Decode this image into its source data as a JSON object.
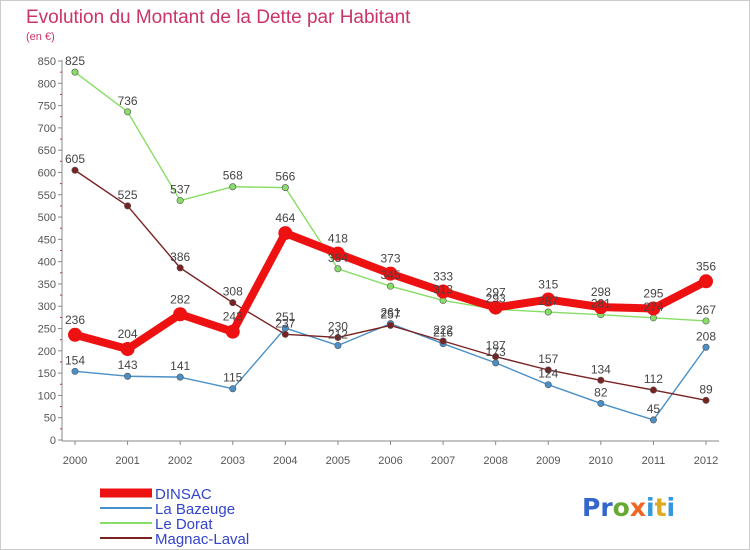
{
  "chart_data": {
    "type": "line",
    "title": "Evolution du Montant de la Dette par Habitant",
    "subtitle": "(en €)",
    "x": [
      "2000",
      "2001",
      "2002",
      "2003",
      "2004",
      "2005",
      "2006",
      "2007",
      "2008",
      "2009",
      "2010",
      "2011",
      "2012"
    ],
    "y_ticks": [
      0,
      50,
      100,
      150,
      200,
      250,
      300,
      350,
      400,
      450,
      500,
      550,
      600,
      650,
      700,
      750,
      800,
      850
    ],
    "ylim": [
      0,
      850
    ],
    "grid": false,
    "legend_position": "bottom-left",
    "series": [
      {
        "name": "La Bazeuge",
        "color": "#4a90c8",
        "values": [
          154,
          143,
          141,
          115,
          251,
          212,
          261,
          216,
          173,
          124,
          82,
          45,
          208
        ],
        "labels": [
          "154",
          "143",
          "141",
          "115",
          "251",
          "212",
          "261",
          "216",
          "173",
          "124",
          "82",
          "45",
          "208"
        ]
      },
      {
        "name": "Le Dorat",
        "color": "#88dd66",
        "values": [
          825,
          736,
          537,
          568,
          566,
          384,
          345,
          313,
          293,
          287,
          281,
          274,
          267
        ],
        "labels": [
          "825",
          "736",
          "537",
          "568",
          "566",
          "384",
          "345",
          "313",
          "293",
          "287",
          "281",
          "274",
          "267"
        ]
      },
      {
        "name": "Magnac-Laval",
        "color": "#7a2222",
        "values": [
          605,
          525,
          386,
          308,
          237,
          230,
          257,
          222,
          187,
          157,
          134,
          112,
          89
        ],
        "labels": [
          "605",
          "525",
          "386",
          "308",
          "237",
          "230",
          "257",
          "222",
          "187",
          "157",
          "134",
          "112",
          "89"
        ]
      },
      {
        "name": "DINSAC",
        "color": "#ee1111",
        "values": [
          236,
          204,
          282,
          243,
          464,
          418,
          373,
          333,
          297,
          315,
          298,
          295,
          356
        ],
        "labels": [
          "236",
          "204",
          "282",
          "243",
          "464",
          "418",
          "373",
          "333",
          "297",
          "315",
          "298",
          "295",
          "356"
        ]
      }
    ],
    "legend_order": [
      "DINSAC",
      "La Bazeuge",
      "Le Dorat",
      "Magnac-Laval"
    ]
  },
  "logo": {
    "text": "Proxiti",
    "letters": [
      "P",
      "r",
      "o",
      "x",
      "i",
      "t",
      "i"
    ]
  },
  "colors": {
    "title": "#cc3366",
    "axis": "#555555",
    "legend_text": "#3344cc",
    "label_text": "#444444"
  }
}
